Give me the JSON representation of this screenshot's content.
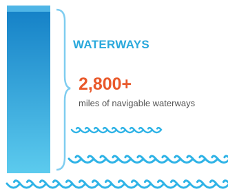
{
  "heading": "WATERWAYS",
  "stat": "2,800+",
  "caption": "miles of navigable waterways"
}
